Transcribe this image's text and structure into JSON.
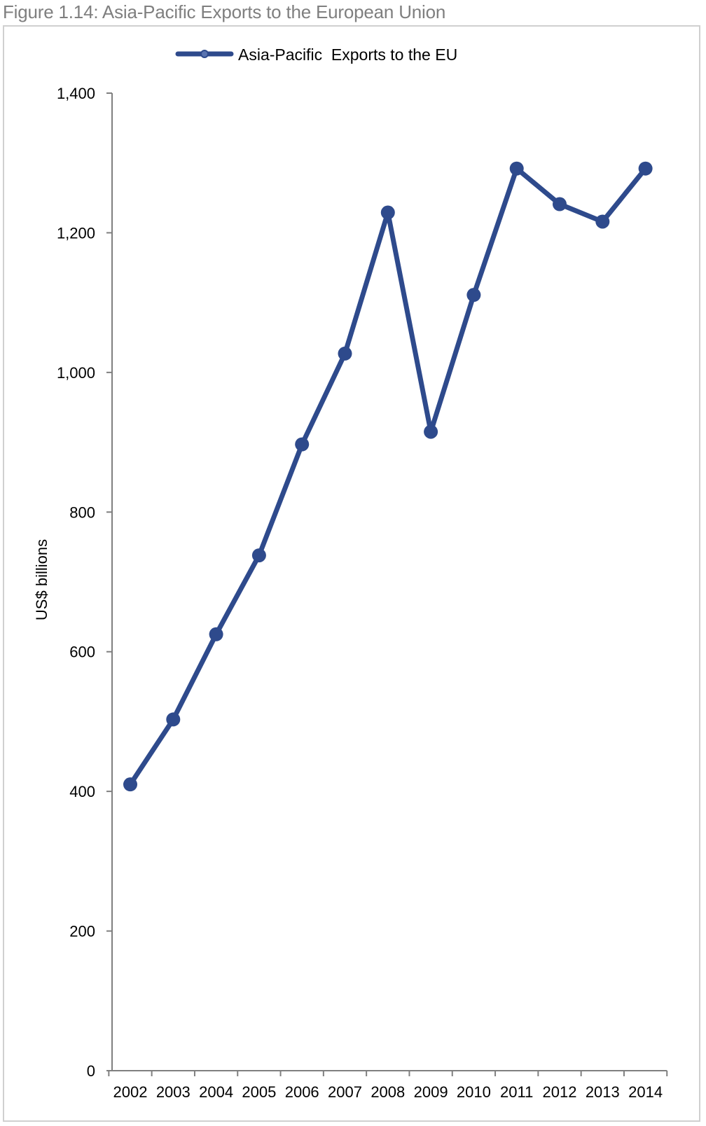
{
  "figure": {
    "title": "Figure 1.14: Asia-Pacific Exports to the European Union"
  },
  "chart_data": {
    "type": "line",
    "title": "",
    "xlabel": "",
    "ylabel": "US$ billions",
    "ylim": [
      0,
      1400
    ],
    "yticks": [
      0,
      200,
      400,
      600,
      800,
      1000,
      1200,
      1400
    ],
    "ytick_labels": [
      "0",
      "200",
      "400",
      "600",
      "800",
      "1,000",
      "1,200",
      "1,400"
    ],
    "categories": [
      "2002",
      "2003",
      "2004",
      "2005",
      "2006",
      "2007",
      "2008",
      "2009",
      "2010",
      "2011",
      "2012",
      "2013",
      "2014"
    ],
    "series": [
      {
        "name": "Asia-Pacific  Exports to the EU",
        "color": "#2e4a8c",
        "values": [
          410,
          503,
          625,
          738,
          897,
          1027,
          1229,
          915,
          1111,
          1292,
          1241,
          1216,
          1292
        ]
      }
    ],
    "legend_position": "top-left",
    "grid": false
  }
}
